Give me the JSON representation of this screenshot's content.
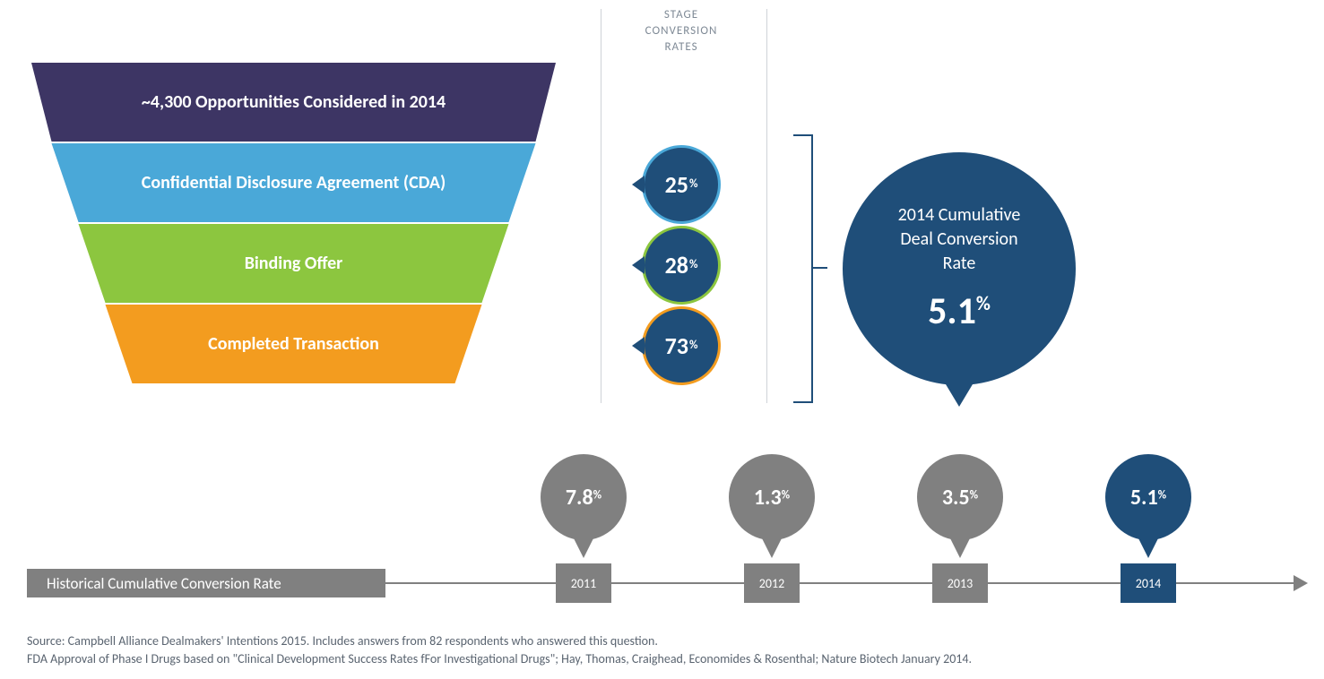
{
  "column_header": "STAGE\nCONVERSION\nRATES",
  "column_header_fontsize": 13,
  "funnel": {
    "label_fontsize": 20,
    "stages": [
      {
        "label": "~4,300 Opportunities Considered in 2014",
        "color": "#3d3564",
        "top_w": 585,
        "bot_w": 540
      },
      {
        "label": "Confidential Disclosure Agreement (CDA)",
        "color": "#4aa8d8",
        "top_w": 540,
        "bot_w": 480
      },
      {
        "label": "Binding Offer",
        "color": "#8cc63f",
        "top_w": 480,
        "bot_w": 420
      },
      {
        "label": "Completed Transaction",
        "color": "#f39c1f",
        "top_w": 420,
        "bot_w": 360
      }
    ]
  },
  "stage_rates": [
    {
      "value": "25",
      "ring": "#4aa8d8"
    },
    {
      "value": "28",
      "ring": "#8cc63f"
    },
    {
      "value": "73",
      "ring": "#f39c1f"
    }
  ],
  "stage_rate_fill": "#1f4e79",
  "cumulative": {
    "title": "2014 Cumulative\nDeal Conversion\nRate",
    "value": "5.1",
    "fill": "#1f4e79",
    "diameter": 260
  },
  "timeline": {
    "label": "Historical Cumulative Conversion Rate",
    "bar_color": "#808080",
    "years": [
      {
        "year": "2011",
        "value": "7.8",
        "color": "#808080"
      },
      {
        "year": "2012",
        "value": "1.3",
        "color": "#808080"
      },
      {
        "year": "2013",
        "value": "3.5",
        "color": "#808080"
      },
      {
        "year": "2014",
        "value": "5.1",
        "color": "#1f4e79"
      }
    ]
  },
  "footnotes": [
    "Source: Campbell Alliance Dealmakers' Intentions 2015. Includes answers from 82 respondents who answered this question.",
    "FDA Approval of Phase I Drugs based on \"Clinical Development Success Rates fFor Investigational Drugs\"; Hay, Thomas, Craighead, Economides & Rosenthal; Nature Biotech January 2014."
  ]
}
